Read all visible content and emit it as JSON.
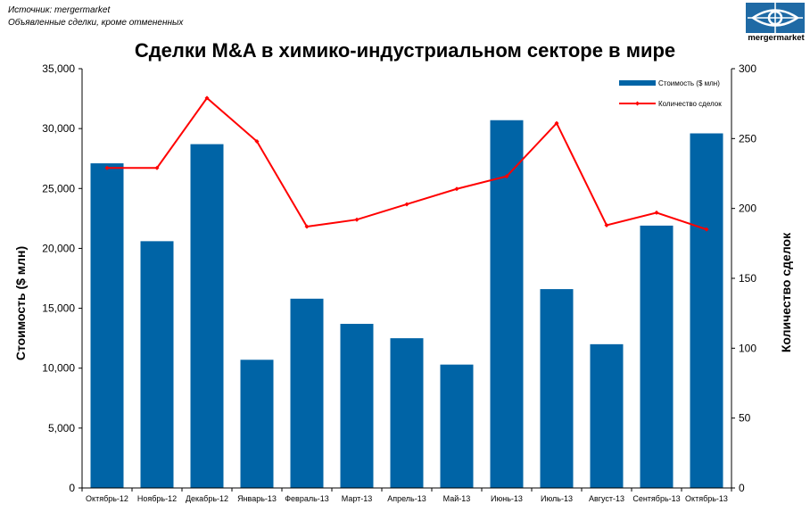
{
  "source": {
    "line1": "Источник: mergermarket",
    "line2": "Объявленные сделки, кроме отмененных"
  },
  "logo": {
    "text": "mergermarket",
    "icon": "eye-logo-icon",
    "color": "#1f6aa5"
  },
  "colors": {
    "bars": "#0064a6",
    "line": "#ff0000"
  },
  "chart_data": {
    "type": "bar",
    "title": "Сделки M&A в химико-индустриальном секторе в мире",
    "categories": [
      "Октябрь-12",
      "Ноябрь-12",
      "Декабрь-12",
      "Январь-13",
      "Февраль-13",
      "Март-13",
      "Апрель-13",
      "Май-13",
      "Июнь-13",
      "Июль-13",
      "Август-13",
      "Сентябрь-13",
      "Октябрь-13"
    ],
    "series": [
      {
        "name": "Стоимость ($ млн)",
        "type": "bar",
        "axis": "left",
        "values": [
          27100,
          20600,
          28700,
          10700,
          15800,
          13700,
          12500,
          10300,
          30700,
          16600,
          12000,
          21900,
          29600
        ]
      },
      {
        "name": "Количество сделок",
        "type": "line",
        "axis": "right",
        "values": [
          229,
          229,
          279,
          248,
          187,
          192,
          203,
          214,
          223,
          261,
          188,
          197,
          185
        ]
      }
    ],
    "ylabel": "Стоимость  ($ млн)",
    "ylabel_right": "Количество сделок",
    "ylim": [
      0,
      35000
    ],
    "ylim_right": [
      0,
      300
    ],
    "yticks": [
      "0",
      "5,000",
      "10,000",
      "15,000",
      "20,000",
      "25,000",
      "30,000",
      "35,000"
    ],
    "yticks_right": [
      "0",
      "50",
      "100",
      "150",
      "200",
      "250",
      "300"
    ],
    "grid": false,
    "legend_position": "top-right"
  }
}
